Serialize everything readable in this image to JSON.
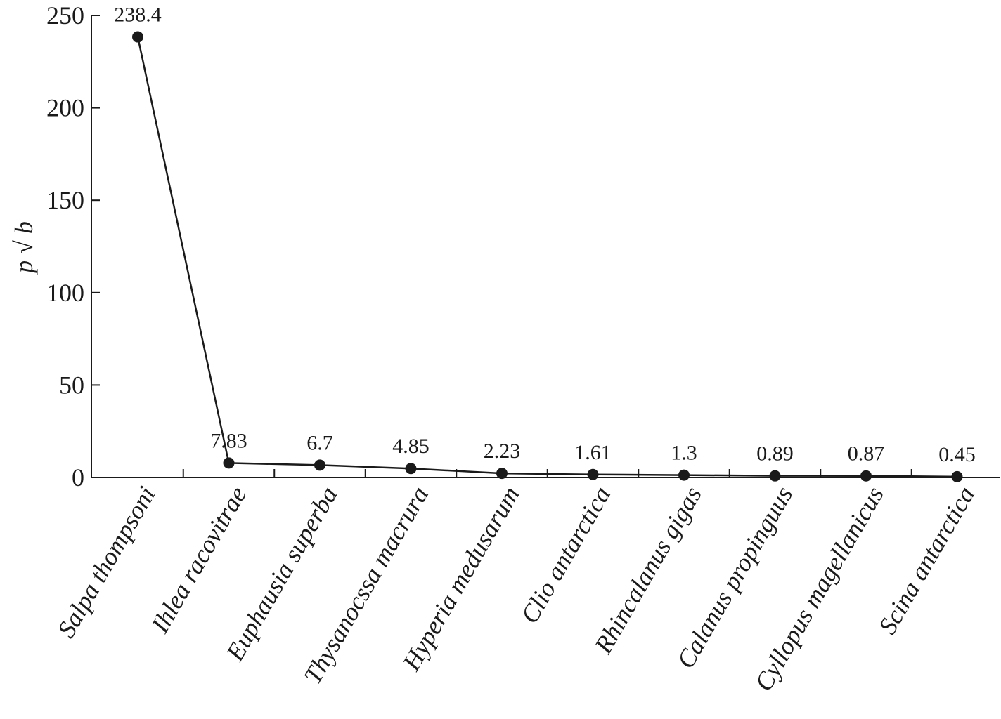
{
  "chart_data": {
    "type": "line",
    "title": "",
    "xlabel": "",
    "ylabel": "p √ b",
    "ylim": [
      0,
      250
    ],
    "yticks": [
      0,
      50,
      100,
      150,
      200,
      250
    ],
    "grid": false,
    "legend": "none",
    "categories": [
      "Salpa thompsoni",
      "Ihlea racovitrae",
      "Euphausia superba",
      "Thysanocssa macrura",
      "Hyperia medusarum",
      "Clio antarctica",
      "Rhincalanus gigas",
      "Calanus propinguus",
      "Cyllopus magellanicus",
      "Scina antarctica"
    ],
    "series": [
      {
        "values": [
          238.4,
          7.83,
          6.7,
          4.85,
          2.23,
          1.61,
          1.3,
          0.89,
          0.87,
          0.45
        ],
        "data_labels": [
          "238.4",
          "7.83",
          "6.7",
          "4.85",
          "2.23",
          "1.61",
          "1.3",
          "0.89",
          "0.87",
          "0.45"
        ],
        "color": "#1a1a1a"
      }
    ]
  }
}
